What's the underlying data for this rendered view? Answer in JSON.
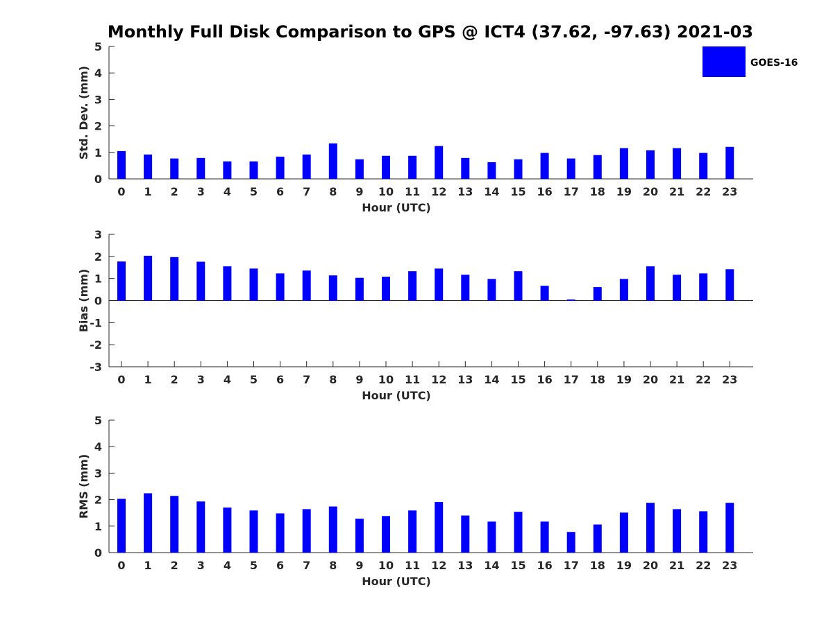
{
  "title": "Monthly Full Disk Comparison to GPS @ ICT4 (37.62, -97.63) 2021-03",
  "legend": {
    "label": "GOES-16",
    "color": "#0000ff",
    "position": "top-right"
  },
  "chart_data": [
    {
      "type": "bar",
      "ylabel": "Std. Dev. (mm)",
      "xlabel": "Hour (UTC)",
      "ylim": [
        0,
        5
      ],
      "yticks": [
        0,
        1,
        2,
        3,
        4,
        5
      ],
      "categories": [
        "0",
        "1",
        "2",
        "3",
        "4",
        "5",
        "6",
        "7",
        "8",
        "9",
        "10",
        "11",
        "12",
        "13",
        "14",
        "15",
        "16",
        "17",
        "18",
        "19",
        "20",
        "21",
        "22",
        "23"
      ],
      "series": [
        {
          "name": "GOES-16",
          "color": "#0000ff",
          "values": [
            1.05,
            0.92,
            0.77,
            0.79,
            0.66,
            0.66,
            0.84,
            0.92,
            1.34,
            0.74,
            0.87,
            0.87,
            1.24,
            0.79,
            0.63,
            0.74,
            0.98,
            0.77,
            0.9,
            1.16,
            1.08,
            1.16,
            0.98,
            1.21
          ]
        }
      ]
    },
    {
      "type": "bar",
      "ylabel": "Bias (mm)",
      "xlabel": "Hour (UTC)",
      "ylim": [
        -3,
        3
      ],
      "yticks": [
        -3,
        -2,
        -1,
        0,
        1,
        2,
        3
      ],
      "categories": [
        "0",
        "1",
        "2",
        "3",
        "4",
        "5",
        "6",
        "7",
        "8",
        "9",
        "10",
        "11",
        "12",
        "13",
        "14",
        "15",
        "16",
        "17",
        "18",
        "19",
        "20",
        "21",
        "22",
        "23"
      ],
      "series": [
        {
          "name": "GOES-16",
          "color": "#0000ff",
          "values": [
            1.77,
            2.03,
            1.97,
            1.76,
            1.55,
            1.45,
            1.23,
            1.36,
            1.14,
            1.03,
            1.08,
            1.33,
            1.45,
            1.17,
            0.98,
            1.33,
            0.67,
            0.05,
            0.61,
            0.98,
            1.55,
            1.17,
            1.23,
            1.42
          ]
        }
      ]
    },
    {
      "type": "bar",
      "ylabel": "RMS (mm)",
      "xlabel": "Hour (UTC)",
      "ylim": [
        0,
        5
      ],
      "yticks": [
        0,
        1,
        2,
        3,
        4,
        5
      ],
      "categories": [
        "0",
        "1",
        "2",
        "3",
        "4",
        "5",
        "6",
        "7",
        "8",
        "9",
        "10",
        "11",
        "12",
        "13",
        "14",
        "15",
        "16",
        "17",
        "18",
        "19",
        "20",
        "21",
        "22",
        "23"
      ],
      "series": [
        {
          "name": "GOES-16",
          "color": "#0000ff",
          "values": [
            2.03,
            2.24,
            2.14,
            1.93,
            1.7,
            1.59,
            1.48,
            1.64,
            1.74,
            1.28,
            1.38,
            1.59,
            1.91,
            1.4,
            1.17,
            1.54,
            1.17,
            0.78,
            1.06,
            1.51,
            1.88,
            1.64,
            1.56,
            1.88
          ]
        }
      ]
    }
  ]
}
